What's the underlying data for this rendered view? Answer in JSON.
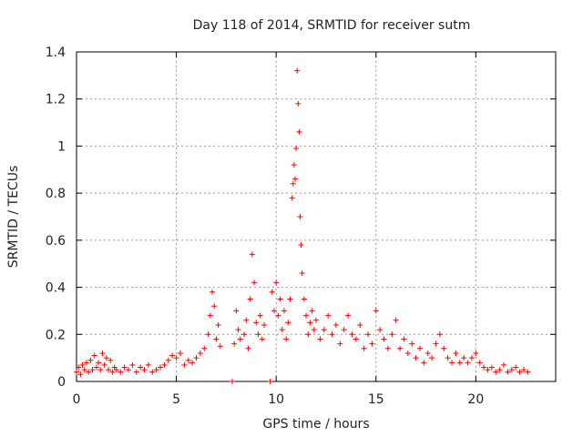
{
  "chart_data": {
    "type": "scatter",
    "title": "Day 118 of 2014, SRMTID for receiver sutm",
    "xlabel": "GPS time / hours",
    "ylabel": "SRMTID / TECUs",
    "xlim": [
      0,
      24
    ],
    "ylim": [
      0,
      1.4
    ],
    "x_ticks": [
      0,
      5,
      10,
      15,
      20
    ],
    "x_tick_labels": [
      "0",
      "5",
      "10",
      "15",
      "20"
    ],
    "y_ticks": [
      0,
      0.2,
      0.4,
      0.6,
      0.8,
      1.0,
      1.2,
      1.4
    ],
    "y_tick_labels": [
      "0",
      "0.2",
      "0.4",
      "0.6",
      "0.8",
      "1",
      "1.2",
      "1.4"
    ],
    "grid": true,
    "marker": "plus",
    "color": "#ff0000",
    "series": [
      {
        "name": "SRMTID",
        "points": [
          [
            0.0,
            0.04
          ],
          [
            0.1,
            0.06
          ],
          [
            0.2,
            0.03
          ],
          [
            0.3,
            0.07
          ],
          [
            0.4,
            0.05
          ],
          [
            0.5,
            0.08
          ],
          [
            0.6,
            0.04
          ],
          [
            0.7,
            0.09
          ],
          [
            0.8,
            0.05
          ],
          [
            0.9,
            0.11
          ],
          [
            1.0,
            0.06
          ],
          [
            1.1,
            0.08
          ],
          [
            1.2,
            0.05
          ],
          [
            1.3,
            0.12
          ],
          [
            1.4,
            0.07
          ],
          [
            1.5,
            0.1
          ],
          [
            1.6,
            0.05
          ],
          [
            1.7,
            0.09
          ],
          [
            1.8,
            0.04
          ],
          [
            1.9,
            0.06
          ],
          [
            2.0,
            0.05
          ],
          [
            2.2,
            0.04
          ],
          [
            2.4,
            0.06
          ],
          [
            2.6,
            0.05
          ],
          [
            2.8,
            0.07
          ],
          [
            3.0,
            0.04
          ],
          [
            3.2,
            0.06
          ],
          [
            3.4,
            0.05
          ],
          [
            3.6,
            0.07
          ],
          [
            3.8,
            0.04
          ],
          [
            4.0,
            0.05
          ],
          [
            4.2,
            0.06
          ],
          [
            4.4,
            0.07
          ],
          [
            4.6,
            0.09
          ],
          [
            4.8,
            0.11
          ],
          [
            5.0,
            0.1
          ],
          [
            5.2,
            0.12
          ],
          [
            5.4,
            0.07
          ],
          [
            5.6,
            0.09
          ],
          [
            5.8,
            0.08
          ],
          [
            6.0,
            0.1
          ],
          [
            6.2,
            0.12
          ],
          [
            6.4,
            0.14
          ],
          [
            6.6,
            0.2
          ],
          [
            6.7,
            0.28
          ],
          [
            6.8,
            0.38
          ],
          [
            6.9,
            0.32
          ],
          [
            7.0,
            0.18
          ],
          [
            7.1,
            0.24
          ],
          [
            7.2,
            0.15
          ],
          [
            7.8,
            0.0
          ],
          [
            7.9,
            0.16
          ],
          [
            8.0,
            0.3
          ],
          [
            8.1,
            0.22
          ],
          [
            8.2,
            0.18
          ],
          [
            8.4,
            0.2
          ],
          [
            8.5,
            0.26
          ],
          [
            8.6,
            0.14
          ],
          [
            8.7,
            0.35
          ],
          [
            8.8,
            0.54
          ],
          [
            8.9,
            0.42
          ],
          [
            9.0,
            0.25
          ],
          [
            9.1,
            0.2
          ],
          [
            9.2,
            0.28
          ],
          [
            9.3,
            0.18
          ],
          [
            9.4,
            0.24
          ],
          [
            9.7,
            0.0
          ],
          [
            9.8,
            0.38
          ],
          [
            9.9,
            0.3
          ],
          [
            10.0,
            0.42
          ],
          [
            10.1,
            0.28
          ],
          [
            10.2,
            0.35
          ],
          [
            10.3,
            0.22
          ],
          [
            10.4,
            0.3
          ],
          [
            10.5,
            0.18
          ],
          [
            10.6,
            0.25
          ],
          [
            10.7,
            0.35
          ],
          [
            10.8,
            0.78
          ],
          [
            10.85,
            0.84
          ],
          [
            10.9,
            0.92
          ],
          [
            10.95,
            0.86
          ],
          [
            11.0,
            0.99
          ],
          [
            11.05,
            1.32
          ],
          [
            11.1,
            1.18
          ],
          [
            11.15,
            1.06
          ],
          [
            11.2,
            0.7
          ],
          [
            11.25,
            0.58
          ],
          [
            11.3,
            0.46
          ],
          [
            11.4,
            0.35
          ],
          [
            11.5,
            0.28
          ],
          [
            11.6,
            0.2
          ],
          [
            11.7,
            0.25
          ],
          [
            11.8,
            0.3
          ],
          [
            11.9,
            0.22
          ],
          [
            12.0,
            0.26
          ],
          [
            12.2,
            0.18
          ],
          [
            12.4,
            0.22
          ],
          [
            12.6,
            0.28
          ],
          [
            12.8,
            0.2
          ],
          [
            13.0,
            0.24
          ],
          [
            13.2,
            0.16
          ],
          [
            13.4,
            0.22
          ],
          [
            13.6,
            0.28
          ],
          [
            13.8,
            0.2
          ],
          [
            14.0,
            0.18
          ],
          [
            14.2,
            0.24
          ],
          [
            14.4,
            0.14
          ],
          [
            14.6,
            0.2
          ],
          [
            14.8,
            0.16
          ],
          [
            15.0,
            0.3
          ],
          [
            15.2,
            0.22
          ],
          [
            15.4,
            0.18
          ],
          [
            15.6,
            0.14
          ],
          [
            15.8,
            0.2
          ],
          [
            16.0,
            0.26
          ],
          [
            16.2,
            0.14
          ],
          [
            16.4,
            0.18
          ],
          [
            16.6,
            0.12
          ],
          [
            16.8,
            0.16
          ],
          [
            17.0,
            0.1
          ],
          [
            17.2,
            0.14
          ],
          [
            17.4,
            0.08
          ],
          [
            17.6,
            0.12
          ],
          [
            17.8,
            0.1
          ],
          [
            18.0,
            0.16
          ],
          [
            18.2,
            0.2
          ],
          [
            18.4,
            0.14
          ],
          [
            18.6,
            0.1
          ],
          [
            18.8,
            0.08
          ],
          [
            19.0,
            0.12
          ],
          [
            19.2,
            0.08
          ],
          [
            19.4,
            0.1
          ],
          [
            19.6,
            0.08
          ],
          [
            19.8,
            0.1
          ],
          [
            20.0,
            0.12
          ],
          [
            20.2,
            0.08
          ],
          [
            20.4,
            0.06
          ],
          [
            20.6,
            0.05
          ],
          [
            20.8,
            0.06
          ],
          [
            21.0,
            0.04
          ],
          [
            21.2,
            0.05
          ],
          [
            21.4,
            0.07
          ],
          [
            21.6,
            0.04
          ],
          [
            21.8,
            0.05
          ],
          [
            22.0,
            0.06
          ],
          [
            22.2,
            0.04
          ],
          [
            22.4,
            0.05
          ],
          [
            22.6,
            0.04
          ]
        ]
      }
    ]
  }
}
